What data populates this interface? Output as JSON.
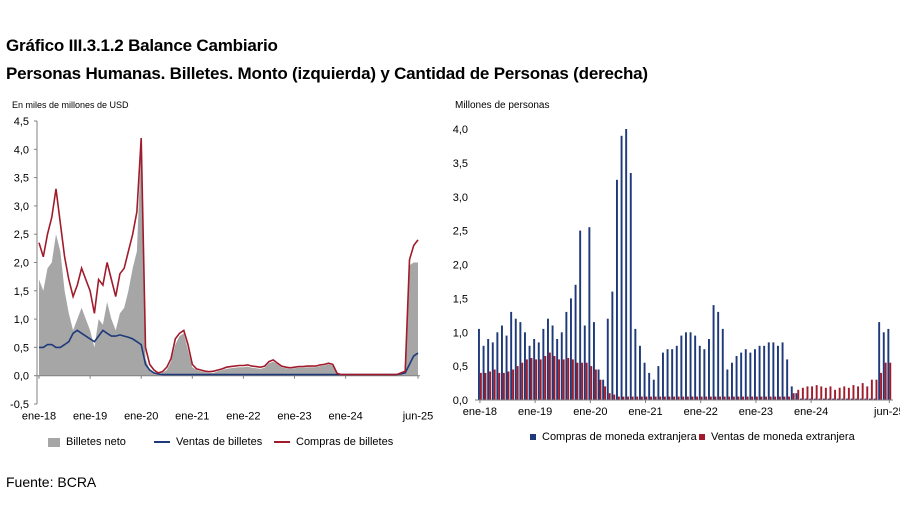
{
  "titles": {
    "line1": "Gráfico III.3.1.2 Balance Cambiario",
    "line2": "Personas Humanas. Billetes. Monto (izquierda) y Cantidad de Personas (derecha)"
  },
  "source": "Fuente: BCRA",
  "colors": {
    "grey": "#a6a6a6",
    "navy": "#1f3a7a",
    "red": "#a01c2c"
  },
  "chart_data": [
    {
      "type": "area+line",
      "ylabel": "En miles de millones de USD",
      "ylim": [
        -0.5,
        4.5
      ],
      "yticks": [
        "-0,5",
        "0,0",
        "0,5",
        "1,0",
        "1,5",
        "2,0",
        "2,5",
        "3,0",
        "3,5",
        "4,0",
        "4,5"
      ],
      "xticks": [
        "ene-18",
        "ene-19",
        "ene-20",
        "ene-21",
        "ene-22",
        "ene-23",
        "ene-24",
        "jun-25"
      ],
      "legend": [
        "Billetes neto",
        "Ventas de billetes",
        "Compras de billetes"
      ],
      "legend_position": "bottom",
      "months": 90,
      "series": [
        {
          "name": "Billetes neto",
          "kind": "area",
          "values": [
            1.7,
            1.5,
            1.9,
            2.0,
            2.5,
            2.2,
            1.5,
            1.1,
            0.8,
            1.0,
            1.2,
            1.0,
            0.8,
            0.5,
            1.0,
            0.9,
            1.3,
            1.0,
            0.8,
            1.1,
            1.2,
            1.5,
            1.9,
            2.2,
            4.1,
            0.3,
            0.1,
            0.05,
            0.03,
            0.05,
            0.1,
            0.25,
            0.55,
            0.7,
            0.75,
            0.45,
            0.15,
            0.1,
            0.08,
            0.06,
            0.05,
            0.05,
            0.08,
            0.1,
            0.12,
            0.13,
            0.14,
            0.15,
            0.15,
            0.16,
            0.14,
            0.13,
            0.12,
            0.14,
            0.22,
            0.25,
            0.2,
            0.15,
            0.13,
            0.12,
            0.13,
            0.14,
            0.14,
            0.15,
            0.15,
            0.15,
            0.17,
            0.18,
            0.2,
            0.18,
            0.02,
            0.0,
            0.0,
            0.0,
            0.0,
            0.0,
            0.0,
            0.0,
            0.0,
            0.0,
            0.0,
            0.0,
            0.0,
            0.0,
            0.0,
            0.02,
            0.03,
            1.95,
            2.0,
            2.0
          ]
        },
        {
          "name": "Ventas de billetes",
          "kind": "line",
          "values": [
            0.5,
            0.5,
            0.55,
            0.55,
            0.5,
            0.5,
            0.55,
            0.6,
            0.75,
            0.8,
            0.75,
            0.7,
            0.65,
            0.6,
            0.7,
            0.8,
            0.75,
            0.7,
            0.7,
            0.72,
            0.7,
            0.68,
            0.65,
            0.6,
            0.55,
            0.2,
            0.1,
            0.05,
            0.03,
            0.02,
            0.02,
            0.02,
            0.02,
            0.02,
            0.02,
            0.02,
            0.02,
            0.02,
            0.02,
            0.02,
            0.02,
            0.02,
            0.02,
            0.02,
            0.02,
            0.02,
            0.02,
            0.02,
            0.02,
            0.02,
            0.02,
            0.02,
            0.02,
            0.02,
            0.02,
            0.02,
            0.02,
            0.02,
            0.02,
            0.02,
            0.02,
            0.02,
            0.02,
            0.02,
            0.02,
            0.02,
            0.02,
            0.02,
            0.02,
            0.02,
            0.02,
            0.02,
            0.02,
            0.02,
            0.02,
            0.02,
            0.02,
            0.02,
            0.02,
            0.02,
            0.02,
            0.02,
            0.02,
            0.02,
            0.02,
            0.03,
            0.05,
            0.2,
            0.35,
            0.4
          ]
        },
        {
          "name": "Compras de billetes",
          "kind": "line",
          "values": [
            2.35,
            2.1,
            2.5,
            2.8,
            3.3,
            2.7,
            2.1,
            1.7,
            1.4,
            1.6,
            1.9,
            1.7,
            1.5,
            1.1,
            1.7,
            1.6,
            2.0,
            1.7,
            1.4,
            1.8,
            1.9,
            2.2,
            2.5,
            2.9,
            4.2,
            0.5,
            0.2,
            0.1,
            0.05,
            0.07,
            0.15,
            0.3,
            0.65,
            0.75,
            0.8,
            0.55,
            0.2,
            0.12,
            0.1,
            0.08,
            0.07,
            0.08,
            0.1,
            0.12,
            0.15,
            0.16,
            0.17,
            0.18,
            0.18,
            0.19,
            0.17,
            0.16,
            0.15,
            0.17,
            0.25,
            0.28,
            0.22,
            0.17,
            0.15,
            0.14,
            0.15,
            0.16,
            0.16,
            0.17,
            0.17,
            0.17,
            0.19,
            0.2,
            0.22,
            0.2,
            0.04,
            0.02,
            0.02,
            0.02,
            0.02,
            0.02,
            0.02,
            0.02,
            0.02,
            0.02,
            0.02,
            0.02,
            0.02,
            0.02,
            0.02,
            0.05,
            0.08,
            2.05,
            2.3,
            2.4
          ]
        }
      ]
    },
    {
      "type": "bar",
      "ylabel": "Millones de personas",
      "ylim": [
        0,
        4.0
      ],
      "yticks": [
        "0,0",
        "0,5",
        "1,0",
        "1,5",
        "2,0",
        "2,5",
        "3,0",
        "3,5",
        "4,0"
      ],
      "xticks": [
        "ene-18",
        "ene-19",
        "ene-20",
        "ene-21",
        "ene-22",
        "ene-23",
        "ene-24",
        "jun-25"
      ],
      "legend": [
        "Compras de moneda extranjera",
        "Ventas de moneda extranjera"
      ],
      "legend_position": "bottom",
      "months": 90,
      "series": [
        {
          "name": "Compras de moneda extranjera",
          "values": [
            1.05,
            0.8,
            0.9,
            0.85,
            1.0,
            1.1,
            0.95,
            1.3,
            1.2,
            1.15,
            1.0,
            0.8,
            0.9,
            0.85,
            1.05,
            1.2,
            1.1,
            0.9,
            1.0,
            1.3,
            1.5,
            1.7,
            2.5,
            1.1,
            2.55,
            1.15,
            0.45,
            0.3,
            1.2,
            1.6,
            3.25,
            3.9,
            4.0,
            3.35,
            1.05,
            0.8,
            0.55,
            0.4,
            0.3,
            0.5,
            0.7,
            0.75,
            0.75,
            0.8,
            0.95,
            1.0,
            1.0,
            0.95,
            0.8,
            0.75,
            0.9,
            1.4,
            1.3,
            1.05,
            0.45,
            0.55,
            0.65,
            0.7,
            0.75,
            0.7,
            0.75,
            0.8,
            0.8,
            0.85,
            0.85,
            0.8,
            0.85,
            0.6,
            0.2,
            0.1,
            0.02,
            0.02,
            0.02,
            0.02,
            0.02,
            0.02,
            0.02,
            0.02,
            0.02,
            0.02,
            0.02,
            0.02,
            0.02,
            0.02,
            0.02,
            0.02,
            0.02,
            1.15,
            1.0,
            1.05
          ]
        },
        {
          "name": "Ventas de moneda extranjera",
          "values": [
            0.4,
            0.4,
            0.42,
            0.45,
            0.4,
            0.4,
            0.42,
            0.45,
            0.5,
            0.55,
            0.6,
            0.62,
            0.6,
            0.6,
            0.65,
            0.7,
            0.65,
            0.6,
            0.6,
            0.62,
            0.6,
            0.55,
            0.55,
            0.55,
            0.5,
            0.45,
            0.3,
            0.2,
            0.1,
            0.08,
            0.05,
            0.05,
            0.05,
            0.05,
            0.05,
            0.05,
            0.05,
            0.05,
            0.05,
            0.05,
            0.05,
            0.05,
            0.05,
            0.05,
            0.05,
            0.05,
            0.05,
            0.05,
            0.05,
            0.05,
            0.05,
            0.05,
            0.05,
            0.05,
            0.05,
            0.05,
            0.05,
            0.05,
            0.05,
            0.05,
            0.05,
            0.05,
            0.05,
            0.05,
            0.05,
            0.05,
            0.05,
            0.05,
            0.1,
            0.15,
            0.18,
            0.2,
            0.2,
            0.22,
            0.2,
            0.18,
            0.2,
            0.15,
            0.18,
            0.2,
            0.18,
            0.22,
            0.2,
            0.25,
            0.2,
            0.3,
            0.3,
            0.4,
            0.55,
            0.55
          ]
        }
      ]
    }
  ]
}
